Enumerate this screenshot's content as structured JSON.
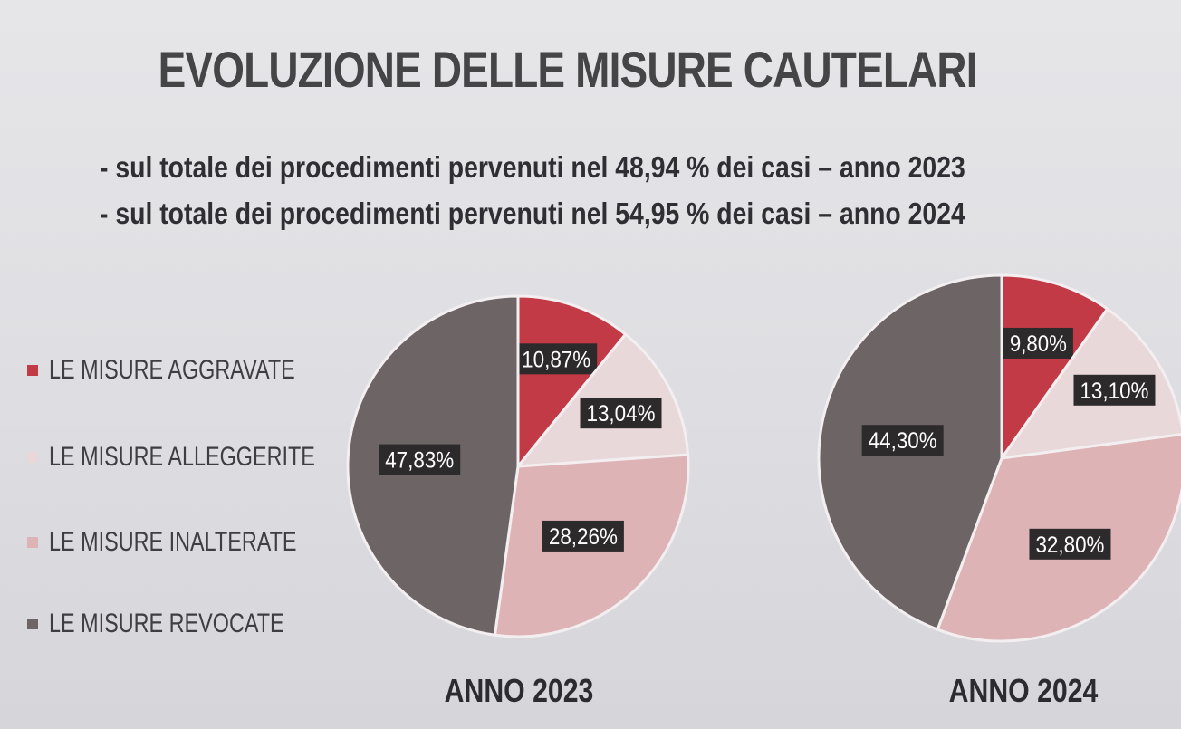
{
  "title": "EVOLUZIONE DELLE MISURE CAUTELARI",
  "subtitles": [
    "- sul totale dei procedimenti pervenuti nel 48,94 % dei casi – anno 2023",
    "- sul totale dei procedimenti pervenuti nel 54,95 % dei casi – anno 2024"
  ],
  "colors": {
    "aggravate": "#c13a45",
    "alleggerite": "#e8d8da",
    "inalterate": "#ddb3b6",
    "revocate": "#6d6466",
    "label_bg": "#2d2a2c",
    "label_text": "#ffffff",
    "slice_border": "#f3eef0"
  },
  "legend": [
    {
      "label": "LE MISURE AGGRAVATE",
      "color": "#c13a45"
    },
    {
      "label": "LE MISURE ALLEGGERITE",
      "color": "#e8d8da"
    },
    {
      "label": "LE MISURE INALTERATE",
      "color": "#ddb3b6"
    },
    {
      "label": "LE MISURE REVOCATE",
      "color": "#6d6466"
    }
  ],
  "chart_data": [
    {
      "type": "pie",
      "title": "ANNO 2023",
      "categories": [
        "LE MISURE AGGRAVATE",
        "LE MISURE ALLEGGERITE",
        "LE MISURE INALTERATE",
        "LE MISURE REVOCATE"
      ],
      "values": [
        10.87,
        13.04,
        28.26,
        47.83
      ],
      "data_labels": [
        "10,87%",
        "13,04%",
        "28,26%",
        "47,83%"
      ],
      "start_angle_deg": 0,
      "direction": "clockwise"
    },
    {
      "type": "pie",
      "title": "ANNO 2024",
      "categories": [
        "LE MISURE AGGRAVATE",
        "LE MISURE ALLEGGERITE",
        "LE MISURE INALTERATE",
        "LE MISURE REVOCATE"
      ],
      "values": [
        9.8,
        13.1,
        32.8,
        44.3
      ],
      "data_labels": [
        "9,80%",
        "13,10%",
        "32,80%",
        "44,30%"
      ],
      "start_angle_deg": 0,
      "direction": "clockwise"
    }
  ]
}
